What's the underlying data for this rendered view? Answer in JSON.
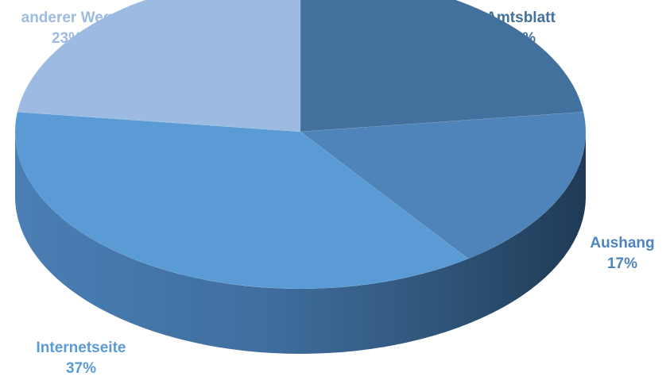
{
  "chart_data": {
    "type": "pie",
    "style": "3d",
    "slices": [
      {
        "label": "Amtsblatt",
        "value": 23,
        "value_label": "23%",
        "color": "#41719c"
      },
      {
        "label": "Aushang",
        "value": 17,
        "value_label": "17%",
        "color": "#4f84bb"
      },
      {
        "label": "Internetseite",
        "value": 37,
        "value_label": "37%",
        "color": "#5b9bd5"
      },
      {
        "label": "anderer Weg",
        "value": 23,
        "value_label": "23%",
        "color": "#9dbbe2"
      }
    ],
    "legend": "none",
    "data_labels": "outside"
  }
}
